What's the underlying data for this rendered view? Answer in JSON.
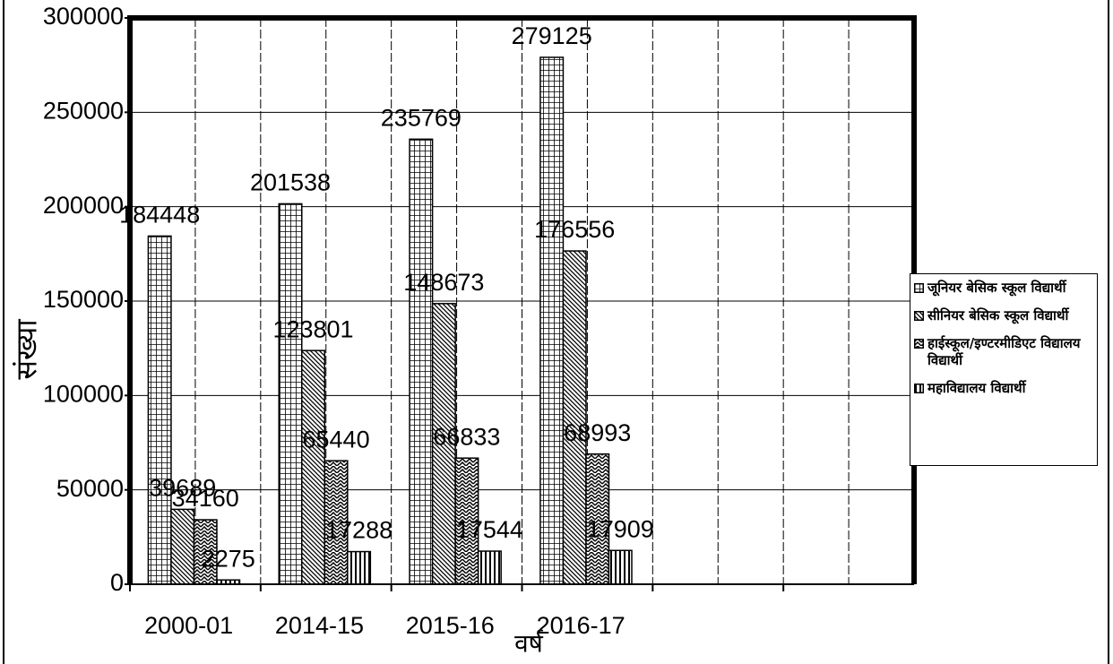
{
  "chart_data": {
    "type": "bar",
    "categories": [
      "2000-01",
      "2014-15",
      "2015-16",
      "2016-17",
      null,
      null
    ],
    "series": [
      {
        "name": "जूनियर बेसिक स्कूल विद्यार्थी",
        "color": "#000000",
        "pattern": "grid",
        "values": [
          184448,
          201538,
          235769,
          279125,
          null,
          null
        ]
      },
      {
        "name": "सीनियर बेसिक  स्कूल विद्यार्थी",
        "color": "#000000",
        "pattern": "diagonal",
        "values": [
          39689,
          123801,
          148673,
          176556,
          null,
          null
        ]
      },
      {
        "name": "हाईस्कूल/इण्टरमीडिएट विद्यालय विद्यार्थी",
        "color": "#000000",
        "pattern": "zigzag",
        "values": [
          34160,
          65440,
          66833,
          68993,
          null,
          null
        ]
      },
      {
        "name": "महाविद्यालय विद्यार्थी",
        "color": "#000000",
        "pattern": "vertical",
        "values": [
          2275,
          17288,
          17544,
          17909,
          null,
          null
        ]
      }
    ],
    "x_label": "वर्ष",
    "y_label": "संख्या",
    "ylim": [
      0,
      300000
    ],
    "yticks": [
      0,
      50000,
      100000,
      150000,
      200000,
      250000,
      300000
    ],
    "grid": true,
    "legend": "right"
  }
}
